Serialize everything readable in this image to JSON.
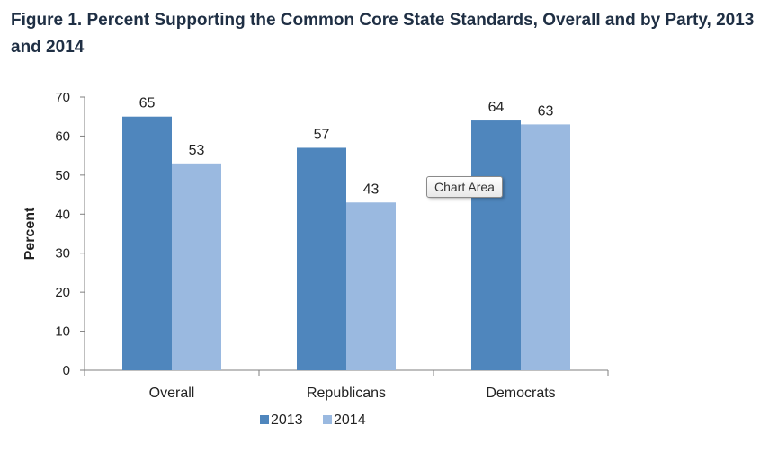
{
  "title": "Figure 1. Percent Supporting the Common Core State Standards, Overall and by Party, 2013 and 2014",
  "tooltip": "Chart Area",
  "colors": {
    "series_2013": "#4f86bd",
    "series_2014": "#9ab9e0",
    "axis": "#7f7f7f"
  },
  "chart_data": {
    "type": "bar",
    "categories": [
      "Overall",
      "Republicans",
      "Democrats"
    ],
    "series": [
      {
        "name": "2013",
        "values": [
          65,
          57,
          64
        ]
      },
      {
        "name": "2014",
        "values": [
          53,
          43,
          63
        ]
      }
    ],
    "ylabel": "Percent",
    "xlabel": "",
    "ylim": [
      0,
      70
    ],
    "yticks": [
      0,
      10,
      20,
      30,
      40,
      50,
      60,
      70
    ],
    "grid": false,
    "legend": "bottom"
  }
}
